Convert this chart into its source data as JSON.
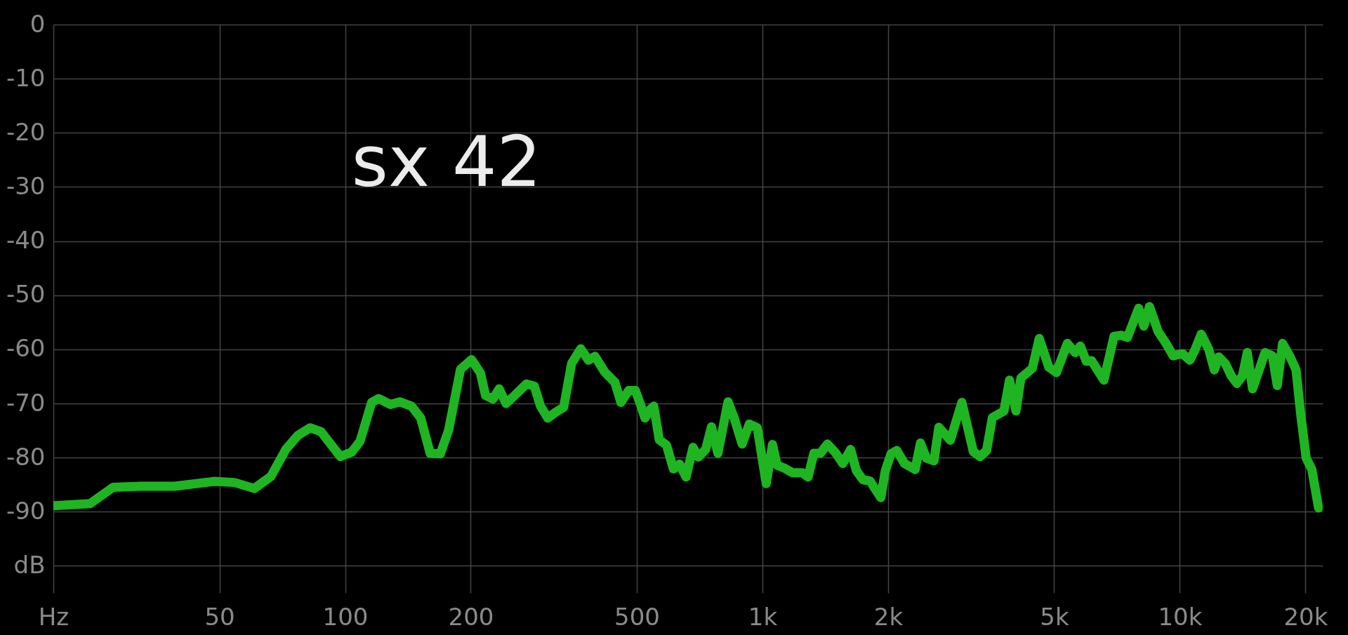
{
  "chart_data": {
    "type": "line",
    "log": "x",
    "grid": true,
    "line_style": "solid",
    "xlim": [
      20,
      22000
    ],
    "ylim": [
      -105,
      0
    ],
    "xticks": [
      {
        "value": 20,
        "label": "Hz"
      },
      50,
      100,
      200,
      500,
      {
        "value": 1000,
        "label": "1k"
      },
      {
        "value": 2000,
        "label": "2k"
      },
      {
        "value": 5000,
        "label": "5k"
      },
      {
        "value": 10000,
        "label": "10k"
      },
      {
        "value": 20000,
        "label": "20k"
      }
    ],
    "yticks": [
      {
        "value": -100,
        "label": "dB"
      },
      -90,
      -80,
      -70,
      -60,
      -50,
      -40,
      -30,
      -20,
      -10,
      0
    ],
    "annotations": [
      "sx 42"
    ],
    "series": [
      {
        "color": "#1fb522",
        "x": [
          20,
          24.5,
          27.8,
          32.4,
          39,
          48.5,
          54.3,
          60.6,
          66.4,
          72.1,
          77.1,
          82.4,
          87.5,
          97.4,
          103.7,
          108.6,
          115.8,
          120.4,
          128.4,
          135.2,
          144.2,
          151.8,
          159.9,
          169.1,
          177.1,
          189,
          201,
          211,
          217,
          226,
          234,
          243,
          255,
          272,
          284,
          294,
          306,
          320,
          334,
          349,
          367,
          383,
          397,
          419,
          443,
          458,
          478,
          496,
          513,
          523,
          539,
          549,
          566,
          589,
          612,
          633,
          656,
          682,
          702,
          731,
          755,
          782,
          827,
          855,
          894,
          930,
          972,
          1021,
          1057,
          1084,
          1132,
          1181,
          1246,
          1286,
          1328,
          1377,
          1431,
          1493,
          1558,
          1626,
          1679,
          1741,
          1809,
          1921,
          1970,
          2033,
          2098,
          2190,
          2322,
          2391,
          2470,
          2576,
          2646,
          2820,
          3005,
          3200,
          3322,
          3444,
          3555,
          3789,
          3908,
          4049,
          4162,
          4433,
          4604,
          4855,
          5062,
          5377,
          5614,
          5776,
          5970,
          6146,
          6579,
          6955,
          7220,
          7490,
          7970,
          8200,
          8460,
          8870,
          9250,
          9640,
          10150,
          10570,
          10860,
          11250,
          11730,
          12100,
          12400,
          12870,
          13280,
          13700,
          14130,
          14510,
          14940,
          15570,
          16000,
          16670,
          17120,
          17630,
          18380,
          18990,
          19470,
          20080,
          20720,
          21500
        ],
        "values": [
          -88.9,
          -88.5,
          -85.5,
          -85.3,
          -85.3,
          -84.4,
          -84.6,
          -85.7,
          -83.5,
          -78.5,
          -75.9,
          -74.5,
          -75.2,
          -79.8,
          -79,
          -77,
          -69.8,
          -69.1,
          -70.2,
          -69.7,
          -70.5,
          -72.7,
          -79.2,
          -79.3,
          -74.9,
          -63.7,
          -61.9,
          -64.4,
          -68.5,
          -69.2,
          -67.3,
          -70,
          -68.5,
          -66.4,
          -66.8,
          -70.5,
          -72.7,
          -71.6,
          -70.7,
          -62.6,
          -59.9,
          -62,
          -61.3,
          -64.2,
          -66.1,
          -69.8,
          -67.6,
          -67.6,
          -70.7,
          -72.7,
          -71.1,
          -70.5,
          -76.7,
          -77.7,
          -82.1,
          -81.2,
          -83.6,
          -78.1,
          -79.9,
          -78.5,
          -74.3,
          -79.2,
          -69.7,
          -72.6,
          -77.5,
          -73.8,
          -74.5,
          -84.8,
          -77.6,
          -81.4,
          -82,
          -82.8,
          -82.8,
          -83.6,
          -79.2,
          -79.2,
          -77.5,
          -79,
          -81.1,
          -78.5,
          -82.4,
          -84.1,
          -84.3,
          -87.4,
          -82.4,
          -79.3,
          -78.7,
          -81.1,
          -82.2,
          -77.3,
          -80.1,
          -80.6,
          -74.4,
          -76.8,
          -69.8,
          -78.9,
          -79.8,
          -78.7,
          -72.6,
          -71.4,
          -65.7,
          -71.4,
          -65.3,
          -63.5,
          -58,
          -63.3,
          -64.3,
          -58.9,
          -60.6,
          -59.4,
          -62.2,
          -62.1,
          -65.7,
          -57.6,
          -57.4,
          -57.8,
          -52.4,
          -55.7,
          -52.1,
          -56.7,
          -58.8,
          -61.2,
          -60.8,
          -62,
          -60.2,
          -57.2,
          -60,
          -63.8,
          -61.4,
          -62.7,
          -64.9,
          -66.3,
          -64.9,
          -60.6,
          -67.3,
          -63.3,
          -60.6,
          -61.2,
          -66.7,
          -58.9,
          -61.4,
          -63.8,
          -71.8,
          -80.1,
          -82.2,
          -89.3
        ]
      }
    ]
  }
}
